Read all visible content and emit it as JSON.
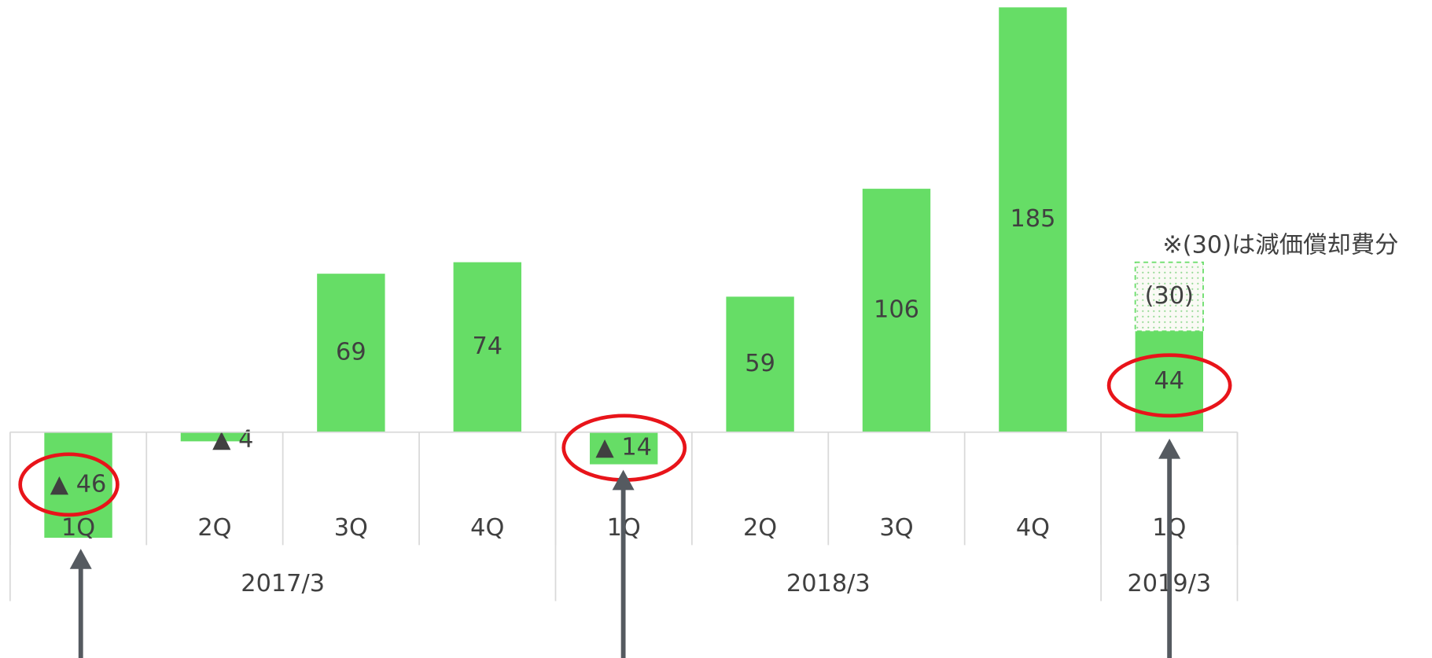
{
  "chart_data": {
    "type": "bar",
    "categories": [
      "1Q",
      "2Q",
      "3Q",
      "4Q",
      "1Q",
      "2Q",
      "3Q",
      "4Q",
      "1Q"
    ],
    "groups": [
      {
        "label": "2017/3",
        "span": 4
      },
      {
        "label": "2018/3",
        "span": 4
      },
      {
        "label": "2019/3",
        "span": 1
      }
    ],
    "values": [
      -46,
      -4,
      69,
      74,
      -14,
      59,
      106,
      185,
      44
    ],
    "value_labels": [
      "▲ 46",
      "▲ 4",
      "69",
      "74",
      "▲ 14",
      "59",
      "106",
      "185",
      "44"
    ],
    "depreciation": {
      "values": [
        null,
        null,
        null,
        null,
        null,
        null,
        null,
        null,
        30
      ],
      "value_labels": [
        null,
        null,
        null,
        null,
        null,
        null,
        null,
        null,
        "(30)"
      ]
    },
    "note": "※(30)は減価償却費分",
    "color": "#66dd66",
    "negative_label_color": "#ff0000",
    "ylim": [
      -46,
      185
    ]
  }
}
